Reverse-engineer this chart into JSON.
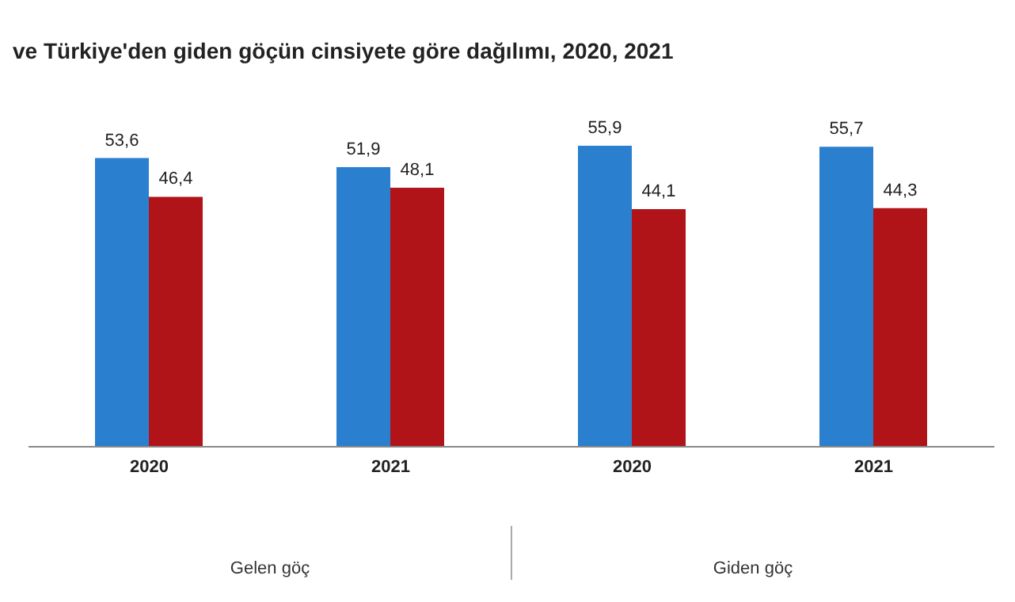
{
  "chart_data": {
    "type": "bar",
    "title": "ve Türkiye'den giden göçün cinsiyete göre dağılımı, 2020, 2021",
    "categories": [
      "2020",
      "2021",
      "2020",
      "2021"
    ],
    "annotations": [
      "Gelen göç",
      "Giden göç"
    ],
    "series": [
      {
        "color": "#2a7fcf",
        "values": [
          53.6,
          51.9,
          55.9,
          55.7
        ],
        "value_labels": [
          "53,6",
          "51,9",
          "55,9",
          "55,7"
        ]
      },
      {
        "color": "#b01419",
        "values": [
          46.4,
          48.1,
          44.1,
          44.3
        ],
        "value_labels": [
          "46,4",
          "48,1",
          "44,1",
          "44,3"
        ]
      }
    ]
  }
}
